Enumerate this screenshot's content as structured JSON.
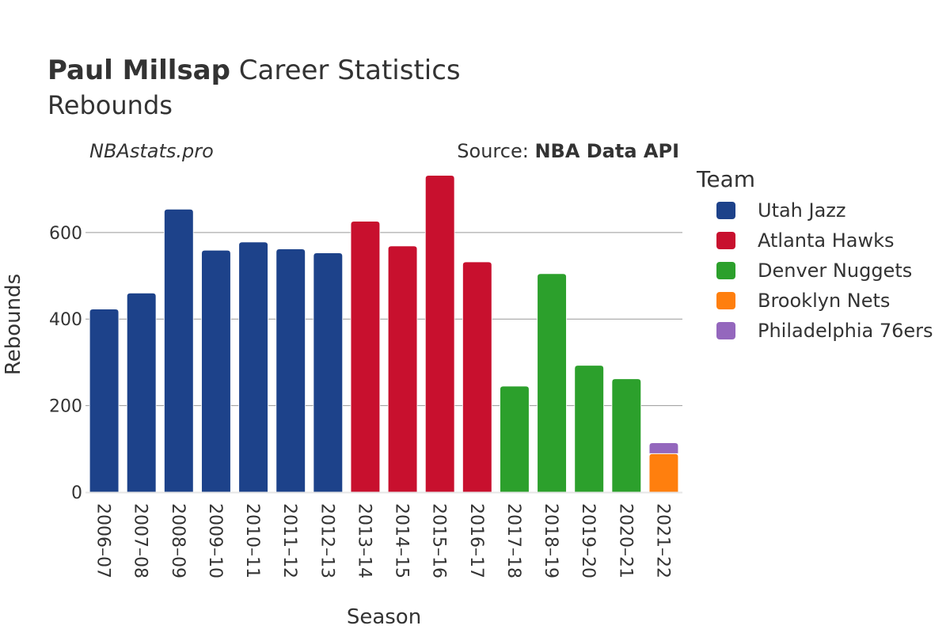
{
  "header": {
    "title_bold": "Paul Millsap",
    "title_rest": "Career Statistics",
    "subtitle": "Rebounds"
  },
  "watermark": "NBAstats.pro",
  "source": {
    "prefix": "Source: ",
    "name": "NBA Data API"
  },
  "legend": {
    "title": "Team",
    "items": [
      {
        "label": "Utah Jazz",
        "color": "#1d428a"
      },
      {
        "label": "Atlanta Hawks",
        "color": "#c8102e"
      },
      {
        "label": "Denver Nuggets",
        "color": "#2ca02c"
      },
      {
        "label": "Brooklyn Nets",
        "color": "#ff7f0e"
      },
      {
        "label": "Philadelphia 76ers",
        "color": "#9467bd"
      }
    ]
  },
  "chart_data": {
    "type": "bar",
    "stacked": true,
    "xlabel": "Season",
    "ylabel": "Rebounds",
    "ylim": [
      0,
      735
    ],
    "yticks": [
      0,
      200,
      400,
      600
    ],
    "grid": true,
    "legend_position": "right",
    "categories": [
      "2006–07",
      "2007–08",
      "2008–09",
      "2009–10",
      "2010–11",
      "2011–12",
      "2012–13",
      "2013–14",
      "2014–15",
      "2015–16",
      "2016–17",
      "2017–18",
      "2018–19",
      "2019–20",
      "2020–21",
      "2021–22"
    ],
    "series": [
      {
        "name": "Utah Jazz",
        "color": "#1d428a",
        "values": [
          423,
          460,
          654,
          559,
          578,
          562,
          553,
          null,
          null,
          null,
          null,
          null,
          null,
          null,
          null,
          null
        ]
      },
      {
        "name": "Atlanta Hawks",
        "color": "#c8102e",
        "values": [
          null,
          null,
          null,
          null,
          null,
          null,
          null,
          626,
          569,
          732,
          532,
          null,
          null,
          null,
          null,
          null
        ]
      },
      {
        "name": "Denver Nuggets",
        "color": "#2ca02c",
        "values": [
          null,
          null,
          null,
          null,
          null,
          null,
          null,
          null,
          null,
          null,
          null,
          245,
          505,
          293,
          262,
          null
        ]
      },
      {
        "name": "Brooklyn Nets",
        "color": "#ff7f0e",
        "values": [
          null,
          null,
          null,
          null,
          null,
          null,
          null,
          null,
          null,
          null,
          null,
          null,
          null,
          null,
          null,
          89
        ]
      },
      {
        "name": "Philadelphia 76ers",
        "color": "#9467bd",
        "values": [
          null,
          null,
          null,
          null,
          null,
          null,
          null,
          null,
          null,
          null,
          null,
          null,
          null,
          null,
          null,
          25
        ]
      }
    ]
  }
}
